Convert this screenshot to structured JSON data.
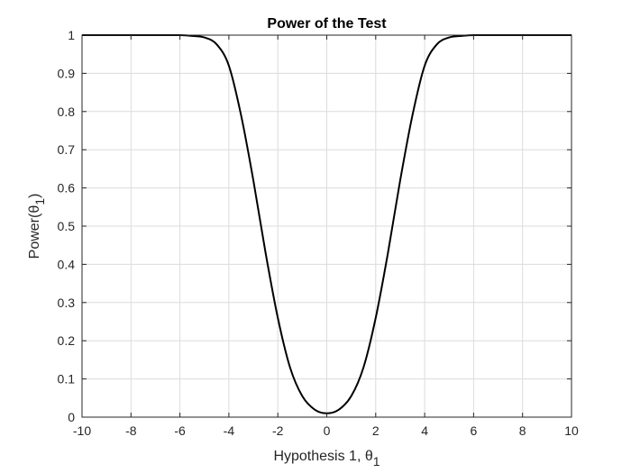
{
  "chart_data": {
    "type": "line",
    "title": "Power of the Test",
    "xlabel": "Hypothesis 1, θ",
    "xlabel_subscript": "1",
    "ylabel": "Power(θ",
    "ylabel_subscript": "1",
    "ylabel_suffix": ")",
    "xlim": [
      -10,
      10
    ],
    "ylim": [
      0,
      1
    ],
    "grid": true,
    "xticks": [
      -10,
      -8,
      -6,
      -4,
      -2,
      0,
      2,
      4,
      6,
      8,
      10
    ],
    "xtick_labels": [
      "-10",
      "-8",
      "-6",
      "-4",
      "-2",
      "0",
      "2",
      "4",
      "6",
      "8",
      "10"
    ],
    "yticks": [
      0,
      0.1,
      0.2,
      0.3,
      0.4,
      0.5,
      0.6,
      0.7,
      0.8,
      0.9,
      1
    ],
    "ytick_labels": [
      "0",
      "0.1",
      "0.2",
      "0.3",
      "0.4",
      "0.5",
      "0.6",
      "0.7",
      "0.8",
      "0.9",
      "1"
    ],
    "series": [
      {
        "color": "#000000",
        "x": [
          -10,
          -7,
          -6,
          -5.5,
          -5,
          -4.5,
          -4,
          -3.5,
          -3,
          -2.5,
          -2,
          -1.5,
          -1,
          -0.5,
          0,
          0.5,
          1,
          1.5,
          2,
          2.5,
          3,
          3.5,
          4,
          4.5,
          5,
          5.5,
          6,
          7,
          10
        ],
        "y": [
          1,
          1,
          1,
          0.998,
          0.994,
          0.976,
          0.92,
          0.79,
          0.62,
          0.43,
          0.26,
          0.13,
          0.055,
          0.02,
          0.01,
          0.02,
          0.055,
          0.13,
          0.26,
          0.43,
          0.62,
          0.79,
          0.92,
          0.976,
          0.994,
          0.998,
          1,
          1,
          1
        ]
      }
    ]
  }
}
